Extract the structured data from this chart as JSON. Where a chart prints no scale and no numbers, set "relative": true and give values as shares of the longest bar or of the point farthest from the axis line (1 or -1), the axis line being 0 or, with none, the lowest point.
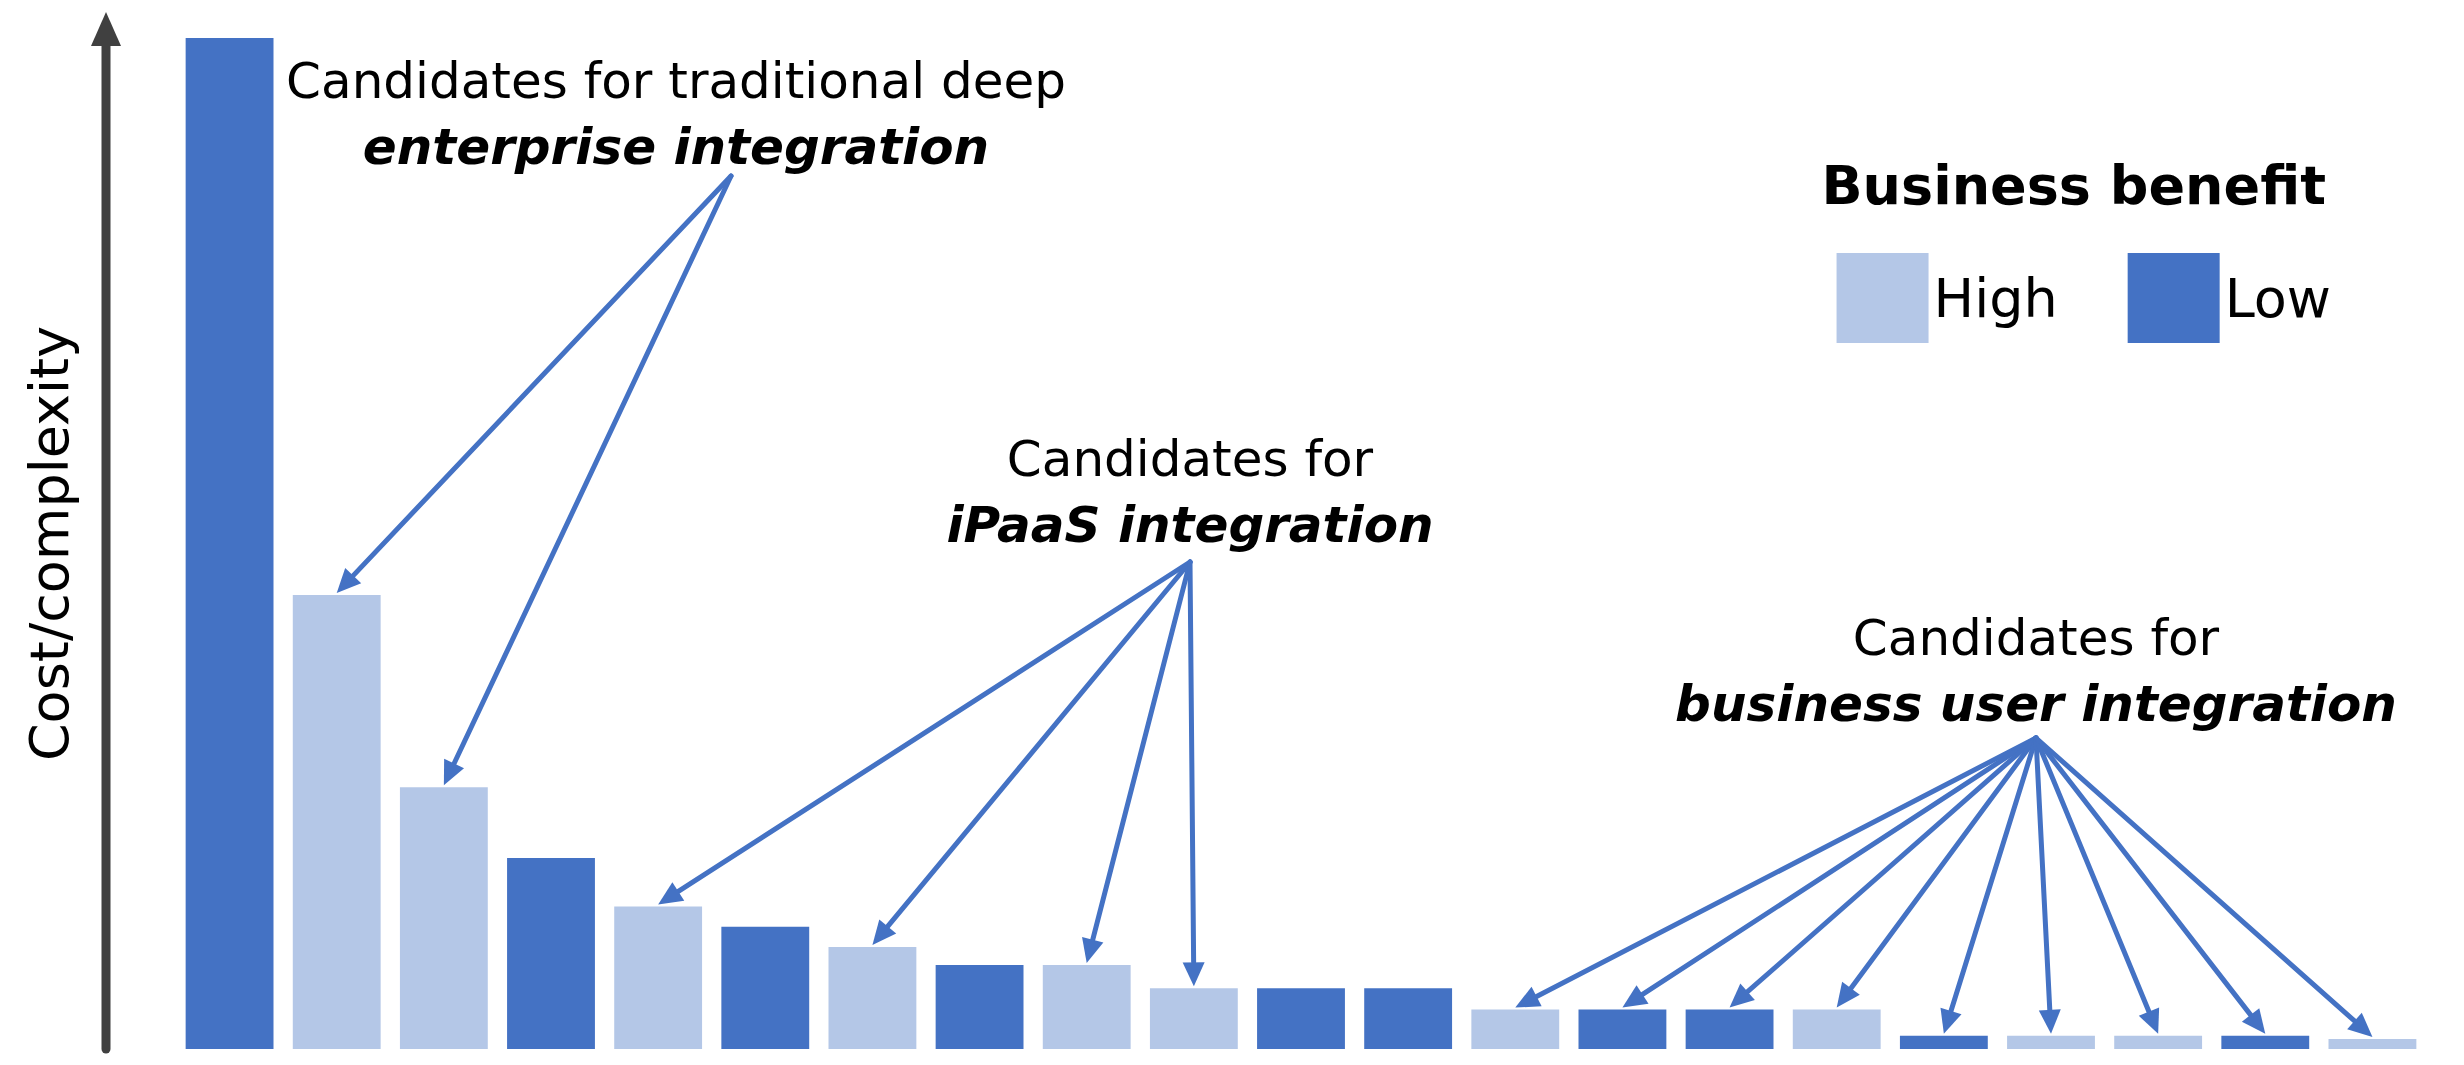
{
  "chart_data": {
    "type": "bar",
    "relative": true,
    "stacked": true,
    "ylabel": "Cost/complexity",
    "legend_title": "Business benefit",
    "legend": "top right",
    "categories": [
      null,
      null,
      null,
      null,
      null,
      null,
      null,
      null,
      null,
      null,
      null,
      null,
      null,
      null,
      null,
      null,
      null,
      null,
      null,
      null,
      null
    ],
    "series": [
      {
        "name": "High",
        "color": "#b4c7e7",
        "values": [
          null,
          0.449,
          0.259,
          null,
          0.141,
          null,
          0.101,
          null,
          0.083,
          0.06,
          null,
          null,
          0.039,
          null,
          null,
          0.039,
          null,
          0.013,
          0.013,
          null,
          0.01
        ]
      },
      {
        "name": "Low",
        "color": "#4472c4",
        "values": [
          1,
          null,
          null,
          0.189,
          null,
          0.121,
          null,
          0.083,
          null,
          null,
          0.06,
          0.06,
          null,
          0.039,
          0.039,
          null,
          0.013,
          null,
          null,
          0.013,
          null
        ]
      }
    ],
    "annotations": [
      "Candidates for traditional deep\nenterprise integration",
      "Candidates for\niPaaS integration",
      "Candidates for\nbusiness user integration"
    ]
  }
}
